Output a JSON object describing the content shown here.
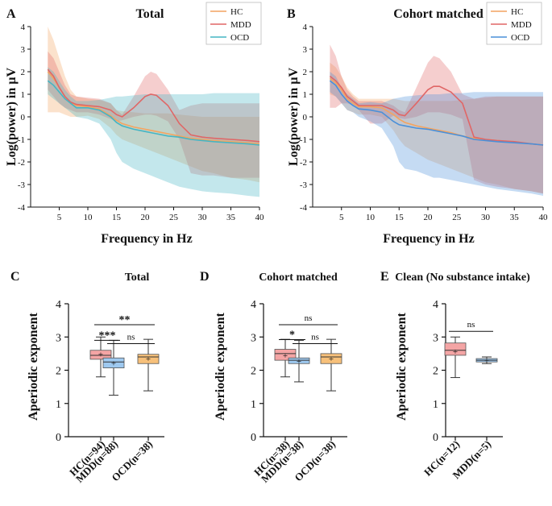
{
  "chart_data": [
    {
      "id": "A",
      "type": "line",
      "panel_label": "A",
      "title": "Total",
      "xlabel": "Frequency in Hz",
      "ylabel": "Log(power) in µV",
      "xlim": [
        0,
        40
      ],
      "ylim": [
        -4,
        4
      ],
      "xticks": [
        5,
        10,
        15,
        20,
        25,
        30,
        35,
        40
      ],
      "yticks": [
        -4,
        -3,
        -2,
        -1,
        0,
        1,
        2,
        3,
        4
      ],
      "legend": [
        "HC",
        "MDD",
        "OCD"
      ],
      "legend_position": "top-right",
      "x": [
        3,
        4,
        5,
        6,
        7,
        8,
        10,
        12,
        14,
        15,
        16,
        18,
        20,
        21,
        22,
        24,
        26,
        28,
        30,
        32,
        35,
        38,
        40
      ],
      "series": [
        {
          "name": "HC",
          "color": "#f4a460",
          "mean": [
            2.0,
            1.7,
            1.3,
            0.9,
            0.6,
            0.5,
            0.45,
            0.35,
            0.05,
            -0.15,
            -0.3,
            -0.45,
            -0.55,
            -0.6,
            -0.65,
            -0.75,
            -0.85,
            -0.95,
            -1.0,
            -1.05,
            -1.1,
            -1.15,
            -1.2
          ],
          "upper": [
            4.0,
            3.4,
            2.6,
            1.8,
            1.2,
            0.9,
            0.8,
            0.75,
            0.6,
            0.3,
            0.25,
            0.2,
            0.15,
            0.15,
            0.15,
            0.15,
            0.1,
            0.05,
            0.0,
            0.0,
            0.0,
            0.0,
            0.0
          ],
          "lower": [
            0.2,
            0.2,
            0.2,
            0.1,
            0.0,
            0.0,
            0.05,
            -0.1,
            -0.5,
            -0.8,
            -1.0,
            -1.2,
            -1.4,
            -1.5,
            -1.6,
            -1.8,
            -2.0,
            -2.2,
            -2.4,
            -2.5,
            -2.7,
            -2.8,
            -2.9
          ]
        },
        {
          "name": "MDD",
          "color": "#e06666",
          "mean": [
            2.1,
            1.8,
            1.3,
            0.9,
            0.65,
            0.55,
            0.5,
            0.45,
            0.3,
            0.1,
            0.0,
            0.4,
            0.9,
            1.0,
            0.95,
            0.5,
            -0.3,
            -0.8,
            -0.9,
            -0.95,
            -1.0,
            -1.05,
            -1.1
          ],
          "upper": [
            2.9,
            2.6,
            2.0,
            1.4,
            1.0,
            0.9,
            0.85,
            0.8,
            0.6,
            0.3,
            0.1,
            0.9,
            1.8,
            2.0,
            1.9,
            1.2,
            0.3,
            0.5,
            0.6,
            0.6,
            0.6,
            0.6,
            0.6
          ],
          "lower": [
            1.2,
            0.9,
            0.6,
            0.4,
            0.3,
            0.2,
            0.2,
            0.1,
            -0.1,
            -0.2,
            -0.15,
            0.0,
            0.1,
            0.1,
            0.05,
            -0.2,
            -1.0,
            -2.5,
            -2.6,
            -2.6,
            -2.7,
            -2.7,
            -2.7
          ]
        },
        {
          "name": "OCD",
          "color": "#45b5c4",
          "mean": [
            1.6,
            1.4,
            1.1,
            0.8,
            0.6,
            0.4,
            0.4,
            0.3,
            0.0,
            -0.25,
            -0.4,
            -0.55,
            -0.65,
            -0.7,
            -0.75,
            -0.85,
            -0.9,
            -1.0,
            -1.05,
            -1.1,
            -1.15,
            -1.2,
            -1.25
          ],
          "upper": [
            2.2,
            2.0,
            1.6,
            1.2,
            0.9,
            0.7,
            0.7,
            0.75,
            0.85,
            0.9,
            0.9,
            0.95,
            1.0,
            1.0,
            1.0,
            1.0,
            1.0,
            1.0,
            1.0,
            1.05,
            1.05,
            1.05,
            1.05
          ],
          "lower": [
            1.0,
            0.8,
            0.6,
            0.4,
            0.2,
            0.0,
            -0.1,
            -0.3,
            -1.0,
            -1.6,
            -2.0,
            -2.3,
            -2.5,
            -2.6,
            -2.7,
            -2.9,
            -3.1,
            -3.2,
            -3.3,
            -3.35,
            -3.4,
            -3.5,
            -3.55
          ]
        }
      ]
    },
    {
      "id": "B",
      "type": "line",
      "panel_label": "B",
      "title": "Cohort matched",
      "xlabel": "Frequency in Hz",
      "ylabel": "Log(power) in µV",
      "xlim": [
        0,
        40
      ],
      "ylim": [
        -4,
        4
      ],
      "xticks": [
        5,
        10,
        15,
        20,
        25,
        30,
        35,
        40
      ],
      "yticks": [
        -4,
        -3,
        -2,
        -1,
        0,
        1,
        2,
        3,
        4
      ],
      "legend": [
        "HC",
        "MDD",
        "OCD"
      ],
      "legend_position": "top-right",
      "x": [
        3,
        4,
        5,
        6,
        7,
        8,
        10,
        12,
        14,
        15,
        16,
        18,
        20,
        21,
        22,
        24,
        26,
        28,
        30,
        32,
        35,
        38,
        40
      ],
      "series": [
        {
          "name": "HC",
          "color": "#f4a460",
          "mean": [
            1.7,
            1.5,
            1.2,
            0.8,
            0.6,
            0.45,
            0.45,
            0.4,
            0.1,
            -0.1,
            -0.25,
            -0.4,
            -0.5,
            -0.55,
            -0.6,
            -0.7,
            -0.85,
            -0.95,
            -1.0,
            -1.05,
            -1.1,
            -1.2,
            -1.25
          ],
          "upper": [
            2.4,
            2.2,
            1.8,
            1.3,
            1.0,
            0.8,
            0.8,
            0.8,
            0.8,
            0.75,
            0.7,
            0.7,
            0.7,
            0.7,
            0.7,
            0.7,
            0.75,
            0.8,
            0.85,
            0.9,
            0.9,
            0.9,
            0.9
          ],
          "lower": [
            1.0,
            0.9,
            0.6,
            0.3,
            0.2,
            0.1,
            0.1,
            0.0,
            -0.6,
            -1.0,
            -1.3,
            -1.6,
            -1.9,
            -2.0,
            -2.1,
            -2.3,
            -2.5,
            -2.7,
            -2.9,
            -3.0,
            -3.2,
            -3.3,
            -3.4
          ]
        },
        {
          "name": "MDD",
          "color": "#e06666",
          "mean": [
            1.8,
            1.6,
            1.3,
            0.9,
            0.7,
            0.5,
            0.5,
            0.5,
            0.3,
            0.1,
            0.05,
            0.6,
            1.2,
            1.35,
            1.35,
            1.1,
            0.6,
            -0.9,
            -1.0,
            -1.05,
            -1.1,
            -1.2,
            -1.25
          ],
          "upper": [
            3.2,
            2.7,
            1.8,
            1.2,
            0.9,
            0.7,
            0.7,
            0.7,
            0.5,
            0.3,
            0.2,
            1.3,
            2.4,
            2.7,
            2.6,
            2.0,
            1.0,
            0.8,
            0.9,
            0.9,
            0.9,
            0.9,
            0.9
          ],
          "lower": [
            0.4,
            0.4,
            0.6,
            0.6,
            0.5,
            0.3,
            -0.3,
            -0.3,
            0.05,
            -0.05,
            -0.1,
            0.0,
            0.2,
            0.2,
            0.2,
            0.1,
            -0.1,
            -2.8,
            -3.0,
            -3.1,
            -3.2,
            -3.3,
            -3.4
          ]
        },
        {
          "name": "OCD",
          "color": "#4a90d9",
          "mean": [
            1.6,
            1.4,
            1.0,
            0.7,
            0.5,
            0.35,
            0.3,
            0.2,
            -0.2,
            -0.35,
            -0.4,
            -0.5,
            -0.55,
            -0.6,
            -0.65,
            -0.75,
            -0.85,
            -1.0,
            -1.05,
            -1.1,
            -1.15,
            -1.2,
            -1.25
          ],
          "upper": [
            2.0,
            1.8,
            1.3,
            1.0,
            0.8,
            0.6,
            0.65,
            0.6,
            0.8,
            0.85,
            0.9,
            0.95,
            1.0,
            1.0,
            1.0,
            1.05,
            1.05,
            1.1,
            1.1,
            1.1,
            1.1,
            1.1,
            1.1
          ],
          "lower": [
            1.1,
            0.9,
            0.6,
            0.3,
            0.2,
            0.0,
            -0.2,
            -0.5,
            -1.3,
            -2.0,
            -2.3,
            -2.4,
            -2.6,
            -2.7,
            -2.7,
            -2.8,
            -2.9,
            -3.0,
            -3.1,
            -3.2,
            -3.3,
            -3.4,
            -3.5
          ]
        }
      ]
    },
    {
      "id": "C",
      "type": "box",
      "panel_label": "C",
      "title": "Total",
      "ylabel": "Aperiodic exponent",
      "ylim": [
        0,
        4
      ],
      "yticks": [
        0,
        1,
        2,
        3,
        4
      ],
      "categories": [
        "HC(n=94)",
        "MDD(n=88)",
        "OCD(n=38)"
      ],
      "boxes": [
        {
          "min": 1.8,
          "q1": 2.33,
          "median": 2.45,
          "q3": 2.6,
          "max": 3.0,
          "mean": 2.48,
          "color": "#f4a5a5"
        },
        {
          "min": 1.25,
          "q1": 2.07,
          "median": 2.25,
          "q3": 2.37,
          "max": 2.9,
          "mean": 2.22,
          "color": "#9ec9f0"
        },
        {
          "min": 1.38,
          "q1": 2.2,
          "median": 2.4,
          "q3": 2.48,
          "max": 2.93,
          "mean": 2.35,
          "color": "#f7c07a"
        }
      ],
      "significance": [
        {
          "from": 0,
          "to": 2,
          "label": "**",
          "level": 3.37
        },
        {
          "from": 0,
          "to": 1,
          "label": "***",
          "level": 2.9
        },
        {
          "from": 1,
          "to": 2,
          "label": "ns",
          "level": 2.8
        }
      ]
    },
    {
      "id": "D",
      "type": "box",
      "panel_label": "D",
      "title": "Cohort matched",
      "ylabel": "Aperiodic exponent",
      "ylim": [
        0,
        4
      ],
      "yticks": [
        0,
        1,
        2,
        3,
        4
      ],
      "categories": [
        "HC(n=38)",
        "MDD(n=38)",
        "OCD(n=38)"
      ],
      "boxes": [
        {
          "min": 1.8,
          "q1": 2.3,
          "median": 2.5,
          "q3": 2.63,
          "max": 2.93,
          "mean": 2.45,
          "color": "#f4a5a5"
        },
        {
          "min": 1.65,
          "q1": 2.2,
          "median": 2.3,
          "q3": 2.37,
          "max": 2.9,
          "mean": 2.28,
          "color": "#9ec9f0"
        },
        {
          "min": 1.38,
          "q1": 2.2,
          "median": 2.4,
          "q3": 2.5,
          "max": 2.93,
          "mean": 2.35,
          "color": "#f7c07a"
        }
      ],
      "significance": [
        {
          "from": 0,
          "to": 2,
          "label": "ns",
          "level": 3.37
        },
        {
          "from": 0,
          "to": 1,
          "label": "*",
          "level": 2.92
        },
        {
          "from": 1,
          "to": 2,
          "label": "ns",
          "level": 2.8
        }
      ]
    },
    {
      "id": "E",
      "type": "box",
      "panel_label": "E",
      "title": "Clean (No substance intake)",
      "ylabel": "Aperiodic exponent",
      "ylim": [
        0,
        4
      ],
      "yticks": [
        0,
        1,
        2,
        3,
        4
      ],
      "categories": [
        "HC(n=12)",
        "MDD(n=5)"
      ],
      "boxes": [
        {
          "min": 1.78,
          "q1": 2.45,
          "median": 2.6,
          "q3": 2.82,
          "max": 3.0,
          "mean": 2.57,
          "color": "#f4a5a5"
        },
        {
          "min": 2.2,
          "q1": 2.25,
          "median": 2.3,
          "q3": 2.35,
          "max": 2.4,
          "mean": 2.3,
          "color": "#9ec9f0"
        }
      ],
      "significance": [
        {
          "from": 0,
          "to": 1,
          "label": "ns",
          "level": 3.17
        }
      ]
    }
  ]
}
